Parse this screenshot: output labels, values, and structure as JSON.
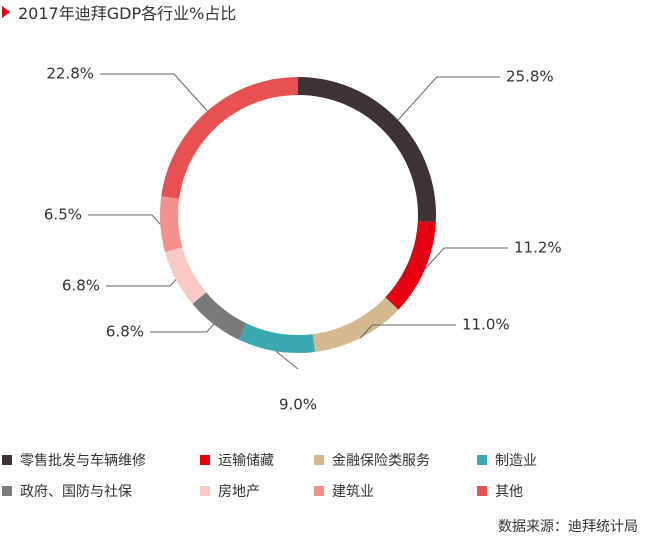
{
  "title": "2017年迪拜GDP各行业%占比",
  "source": "数据来源：迪拜统计局",
  "chart_data": {
    "type": "pie",
    "title": "2017年迪拜GDP各行业%占比",
    "donut": true,
    "legend_position": "bottom",
    "series": [
      {
        "name": "零售批发与车辆维修",
        "value": 25.8,
        "label": "25.8%",
        "color": "#3d3234"
      },
      {
        "name": "运输储藏",
        "value": 11.2,
        "label": "11.2%",
        "color": "#e60012"
      },
      {
        "name": "金融保险类服务",
        "value": 11.0,
        "label": "11.0%",
        "color": "#d4b98f"
      },
      {
        "name": "制造业",
        "value": 9.0,
        "label": "9.0%",
        "color": "#3aa8b0"
      },
      {
        "name": "政府、国防与社保",
        "value": 6.8,
        "label": "6.8%",
        "color": "#7a7a7a"
      },
      {
        "name": "房地产",
        "value": 6.8,
        "label": "6.8%",
        "color": "#f9c9c6"
      },
      {
        "name": "建筑业",
        "value": 6.5,
        "label": "6.5%",
        "color": "#f5908e"
      },
      {
        "name": "其他",
        "value": 22.8,
        "label": "22.8%",
        "color": "#e85052"
      }
    ]
  }
}
